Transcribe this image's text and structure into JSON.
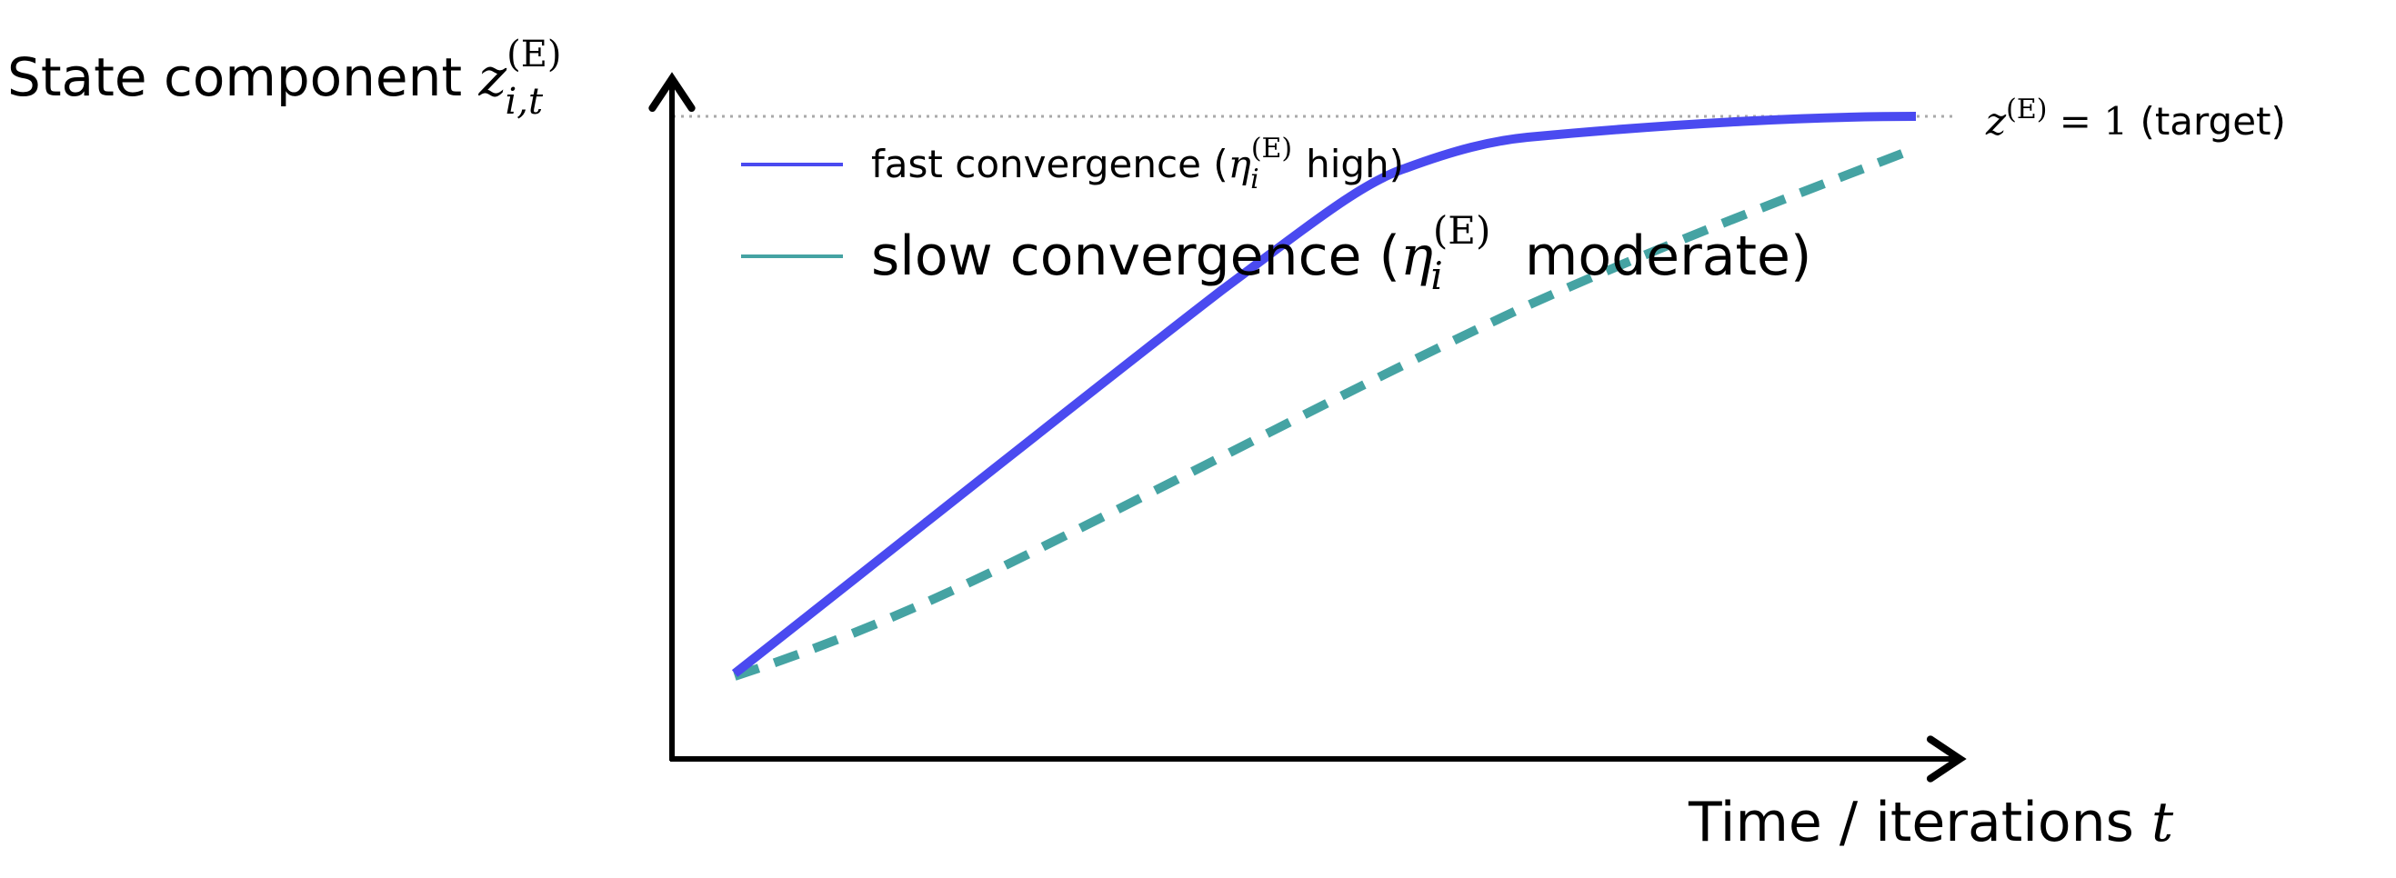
{
  "y_axis_label": {
    "text": "State component",
    "symbol": "z",
    "superscript": "(E)",
    "subscript": "i,t"
  },
  "x_axis_label": {
    "text": "Time / iterations",
    "symbol": "t"
  },
  "target_label": {
    "symbol": "z",
    "superscript": "(E)",
    "equation": " = 1",
    "text": "(target)"
  },
  "legend": [
    {
      "before": "fast convergence (",
      "symbol": "η",
      "superscript": "(E)",
      "subscript": "i",
      "after": " high)"
    },
    {
      "before": "slow convergence (",
      "symbol": "η",
      "superscript": "(E)",
      "subscript": "i",
      "after": "  moderate)"
    }
  ]
}
